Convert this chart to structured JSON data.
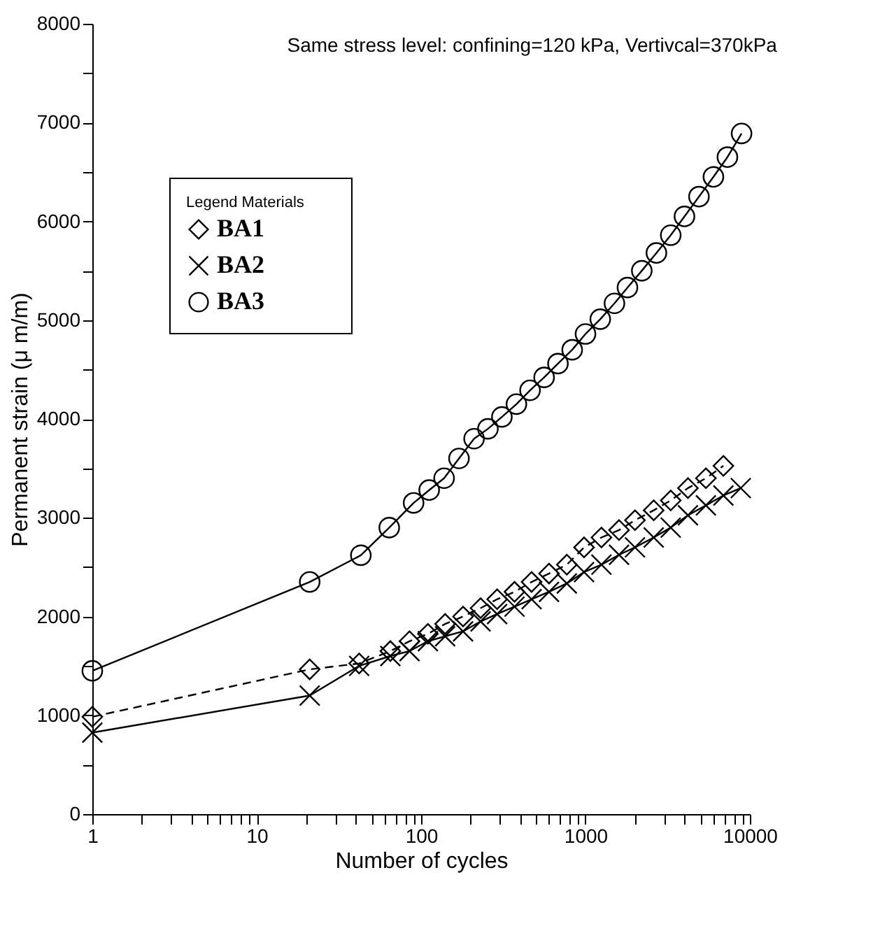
{
  "chart_data": {
    "type": "line",
    "title": "Same stress level: confining=120 kPa, Vertivcal=370kPa",
    "xlabel": "Number of cycles",
    "ylabel": "Permanent strain (μ m/m)",
    "legend_title": "Legend        Materials",
    "legend": "top left",
    "log": "x",
    "grid": false,
    "xlim": [
      1,
      10000
    ],
    "ylim": [
      0,
      8000
    ],
    "xticks": [
      1,
      {
        "value": 2,
        "label": null
      },
      {
        "value": 3,
        "label": null
      },
      {
        "value": 4,
        "label": null
      },
      {
        "value": 5,
        "label": null
      },
      {
        "value": 6,
        "label": null
      },
      {
        "value": 7,
        "label": null
      },
      {
        "value": 8,
        "label": null
      },
      {
        "value": 9,
        "label": null
      },
      10,
      {
        "value": 20,
        "label": null
      },
      {
        "value": 30,
        "label": null
      },
      {
        "value": 40,
        "label": null
      },
      {
        "value": 50,
        "label": null
      },
      {
        "value": 60,
        "label": null
      },
      {
        "value": 70,
        "label": null
      },
      {
        "value": 80,
        "label": null
      },
      {
        "value": 90,
        "label": null
      },
      100,
      {
        "value": 200,
        "label": null
      },
      {
        "value": 300,
        "label": null
      },
      {
        "value": 400,
        "label": null
      },
      {
        "value": 500,
        "label": null
      },
      {
        "value": 600,
        "label": null
      },
      {
        "value": 700,
        "label": null
      },
      {
        "value": 800,
        "label": null
      },
      {
        "value": 900,
        "label": null
      },
      1000,
      {
        "value": 2000,
        "label": null
      },
      {
        "value": 3000,
        "label": null
      },
      {
        "value": 4000,
        "label": null
      },
      {
        "value": 5000,
        "label": null
      },
      {
        "value": 6000,
        "label": null
      },
      {
        "value": 7000,
        "label": null
      },
      {
        "value": 8000,
        "label": null
      },
      {
        "value": 9000,
        "label": null
      },
      10000
    ],
    "yticks": [
      0,
      {
        "value": 500,
        "label": null
      },
      1000,
      {
        "value": 1500,
        "label": null
      },
      2000,
      {
        "value": 2500,
        "label": null
      },
      3000,
      {
        "value": 3500,
        "label": null
      },
      4000,
      {
        "value": 4500,
        "label": null
      },
      5000,
      {
        "value": 5500,
        "label": null
      },
      6000,
      {
        "value": 6500,
        "label": null
      },
      7000,
      {
        "value": 7500,
        "label": null
      },
      8000
    ],
    "series": [
      {
        "name": "BA1",
        "color": "#000000",
        "marker": "diamond",
        "line_style": "dashed",
        "x": [
          1,
          21,
          42,
          65,
          85,
          110,
          140,
          180,
          230,
          290,
          370,
          470,
          600,
          770,
          980,
          1250,
          1600,
          2000,
          2600,
          3300,
          4200,
          5400,
          6900
        ],
        "values": [
          985,
          1465,
          1525,
          1650,
          1750,
          1825,
          1925,
          2000,
          2085,
          2175,
          2250,
          2350,
          2435,
          2525,
          2700,
          2800,
          2875,
          2975,
          3075,
          3175,
          3300,
          3400,
          3525
        ]
      },
      {
        "name": "BA2",
        "color": "#000000",
        "marker": "cross",
        "line_style": "solid",
        "x": [
          1,
          21,
          42,
          65,
          85,
          110,
          140,
          180,
          230,
          290,
          370,
          470,
          600,
          770,
          980,
          1250,
          1600,
          2000,
          2600,
          3300,
          4200,
          5400,
          6900,
          8800
        ],
        "values": [
          825,
          1200,
          1500,
          1600,
          1650,
          1750,
          1800,
          1850,
          1950,
          2025,
          2100,
          2175,
          2250,
          2335,
          2450,
          2525,
          2625,
          2700,
          2800,
          2900,
          3025,
          3125,
          3225,
          3300
        ]
      },
      {
        "name": "BA3",
        "color": "#000000",
        "marker": "circle",
        "line_style": "solid",
        "x": [
          1,
          21,
          43,
          64,
          90,
          112,
          138,
          170,
          210,
          255,
          310,
          380,
          460,
          560,
          680,
          830,
          1000,
          1230,
          1500,
          1800,
          2200,
          2700,
          3300,
          4000,
          4900,
          6000,
          7300,
          8900
        ],
        "values": [
          1450,
          2350,
          2620,
          2900,
          3150,
          3280,
          3400,
          3600,
          3800,
          3900,
          4020,
          4150,
          4290,
          4420,
          4560,
          4700,
          4860,
          5010,
          5170,
          5330,
          5500,
          5680,
          5860,
          6050,
          6250,
          6450,
          6650,
          6890
        ]
      }
    ]
  }
}
